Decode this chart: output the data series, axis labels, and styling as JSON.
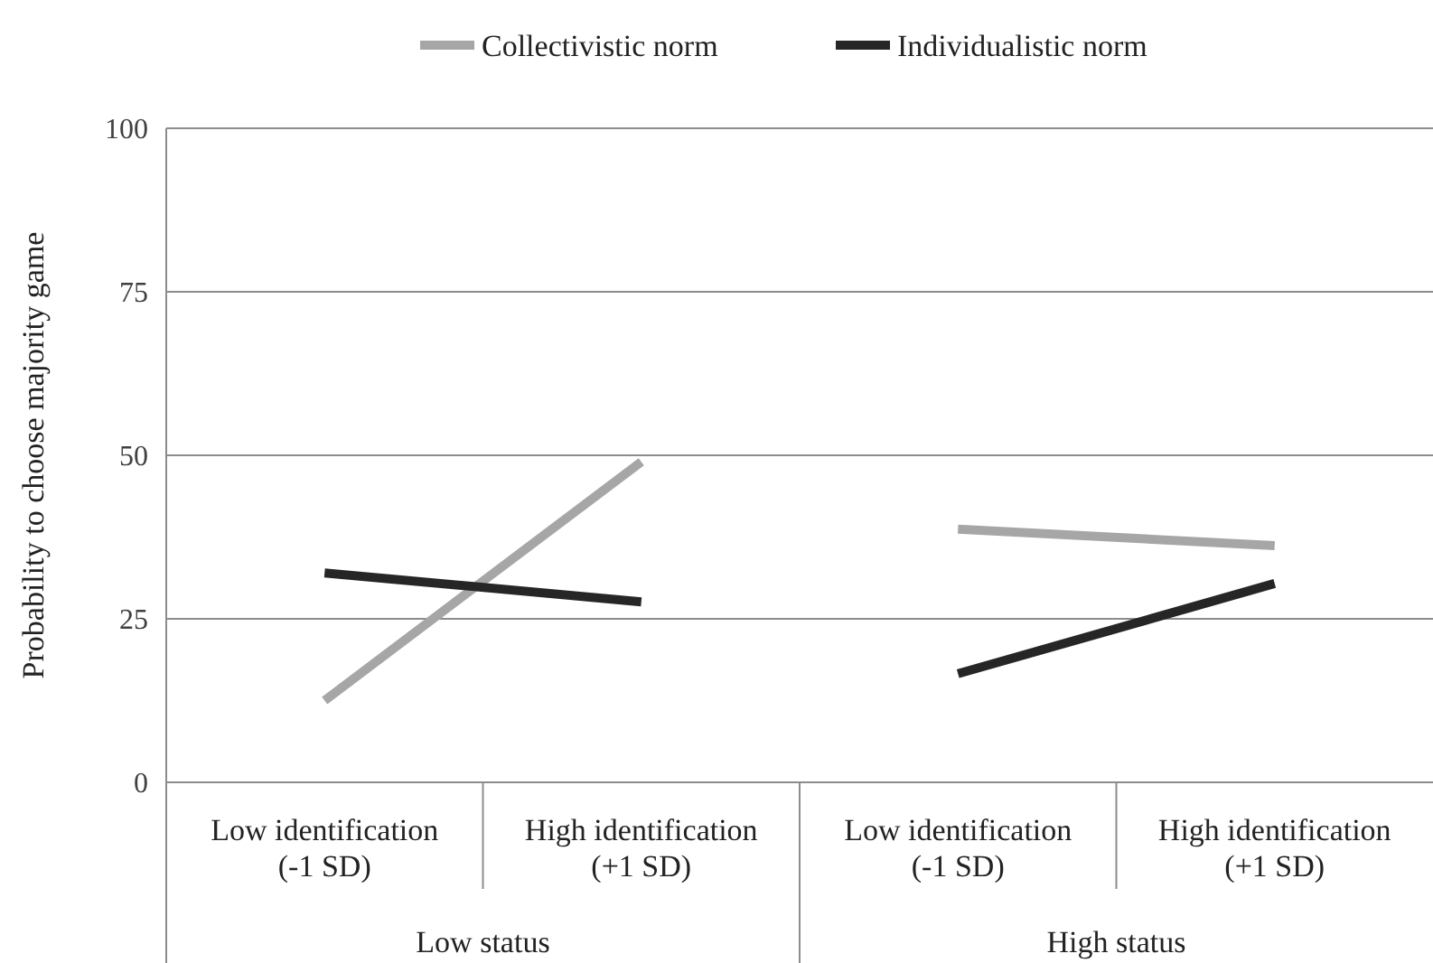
{
  "chart_data": {
    "type": "line",
    "ylabel": "Probability to choose majority game",
    "categories": [
      "Low identification (-1 SD)",
      "High identification (+1 SD)",
      "Low identification (-1 SD)",
      "High identification (+1 SD)"
    ],
    "series": [
      {
        "name": "Collectivistic norm",
        "color": "#a6a6a6",
        "values": [
          12.5,
          49,
          null,
          null
        ]
      },
      {
        "name": "Individualistic norm",
        "color": "#262626",
        "values": [
          32,
          27.6,
          null,
          null
        ]
      },
      {
        "color": "#a6a6a6",
        "values": [
          null,
          null,
          38.7,
          36.2
        ]
      },
      {
        "color": "#262626",
        "values": [
          null,
          null,
          16.6,
          30.4
        ]
      }
    ],
    "annotations": [
      "Low status",
      "High status"
    ],
    "ylim": [
      0,
      100
    ],
    "yticks": [
      0,
      25,
      50,
      75,
      100
    ],
    "grid": "y",
    "legend": "top",
    "marker": "none",
    "line_style": "solid"
  }
}
